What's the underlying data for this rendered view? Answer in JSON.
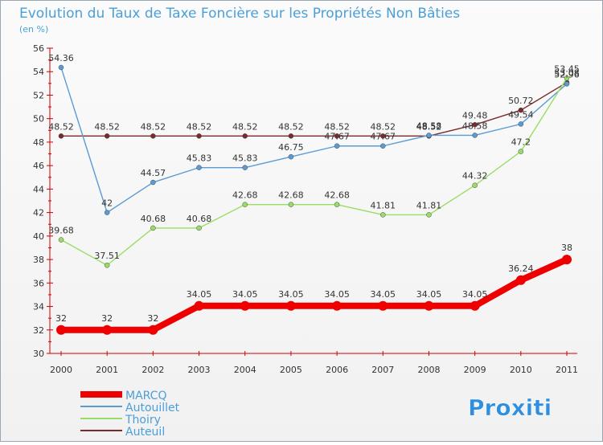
{
  "chart_data": {
    "type": "line",
    "title": "Evolution du Taux de Taxe Foncière sur les Propriétés Non Bâties",
    "ylabel": "(en %)",
    "xlabel": "",
    "x": [
      "2000",
      "2001",
      "2002",
      "2003",
      "2004",
      "2005",
      "2006",
      "2007",
      "2008",
      "2009",
      "2010",
      "2011"
    ],
    "ylim": [
      30,
      56
    ],
    "yticks": [
      30,
      32,
      34,
      36,
      38,
      40,
      42,
      44,
      46,
      48,
      50,
      52,
      54,
      56
    ],
    "grid": false,
    "legend": "bottom-left",
    "series": [
      {
        "name": "Auteuil",
        "color": "#7a2a2a",
        "values": [
          48.52,
          48.52,
          48.52,
          48.52,
          48.52,
          48.52,
          48.52,
          48.52,
          48.52,
          49.48,
          50.72,
          53.08
        ],
        "labels": [
          "48.52",
          "48.52",
          "48.52",
          "48.52",
          "48.52",
          "48.52",
          "48.52",
          "48.52",
          "48.52",
          "49.48",
          "50.72",
          "53.08"
        ]
      },
      {
        "name": "Autouillet",
        "color": "#5b9bd5",
        "values": [
          54.36,
          42,
          44.57,
          45.83,
          45.83,
          46.75,
          47.67,
          47.67,
          48.58,
          48.58,
          49.54,
          52.96
        ],
        "labels": [
          "54.36",
          "42",
          "44.57",
          "45.83",
          "45.83",
          "46.75",
          "47.67",
          "47.67",
          "48.58",
          "48.58",
          "49.54",
          "52.96"
        ]
      },
      {
        "name": "Thoiry",
        "color": "#99dd66",
        "values": [
          39.68,
          37.51,
          40.68,
          40.68,
          42.68,
          42.68,
          42.68,
          41.81,
          41.81,
          44.32,
          47.2,
          53.45
        ],
        "labels": [
          "39.68",
          "37.51",
          "40.68",
          "40.68",
          "42.68",
          "42.68",
          "42.68",
          "41.81",
          "41.81",
          "44.32",
          "47.2",
          "53.45"
        ]
      },
      {
        "name": "MARCQ",
        "color": "#ee0000",
        "values": [
          32,
          32,
          32,
          34.05,
          34.05,
          34.05,
          34.05,
          34.05,
          34.05,
          34.05,
          36.24,
          38
        ],
        "labels": [
          "32",
          "32",
          "32",
          "34.05",
          "34.05",
          "34.05",
          "34.05",
          "34.05",
          "34.05",
          "34.05",
          "36.24",
          "38"
        ]
      }
    ],
    "legend_entries": [
      {
        "name": "MARCQ",
        "color": "#ee0000"
      },
      {
        "name": "Autouillet",
        "color": "#5b9bd5"
      },
      {
        "name": "Thoiry",
        "color": "#99dd66"
      },
      {
        "name": "Auteuil",
        "color": "#7a2a2a"
      }
    ]
  },
  "branding": {
    "logo_text": "Proxiti"
  },
  "colors": {
    "title": "#4a9fd8",
    "axis": "#cc0000",
    "label": "#333333",
    "frame": "#9aa6b4"
  }
}
